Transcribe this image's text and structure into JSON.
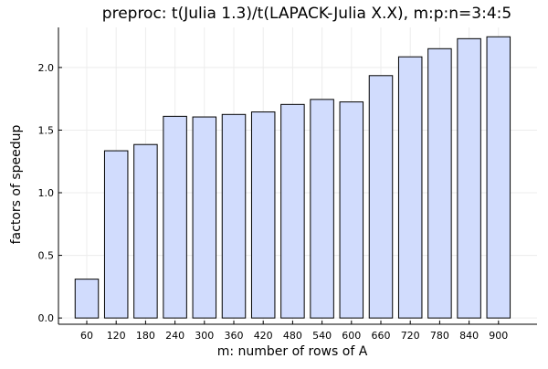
{
  "chart_data": {
    "type": "bar",
    "title": "preproc: t(Julia 1.3)/t(LAPACK-Julia X.X), m:p:n=3:4:5",
    "xlabel": "m: number of rows of A",
    "ylabel": "factors of speedup",
    "categories": [
      "60",
      "120",
      "180",
      "240",
      "300",
      "360",
      "420",
      "480",
      "540",
      "600",
      "660",
      "720",
      "780",
      "840",
      "900"
    ],
    "values": [
      0.31,
      1.335,
      1.385,
      1.61,
      1.605,
      1.625,
      1.645,
      1.705,
      1.745,
      1.725,
      1.935,
      2.085,
      2.15,
      2.23,
      2.245
    ],
    "ylim": [
      -0.05,
      2.32
    ],
    "yticks": [
      0.0,
      0.5,
      1.0,
      1.5,
      2.0
    ],
    "ytick_labels": [
      "0.0",
      "0.5",
      "1.0",
      "1.5",
      "2.0"
    ],
    "grid": true,
    "legend": "none",
    "bar_fill": "#d1dcfd",
    "bar_stroke": "#000000",
    "grid_color": "#ececec",
    "axis_color": "#000000"
  }
}
